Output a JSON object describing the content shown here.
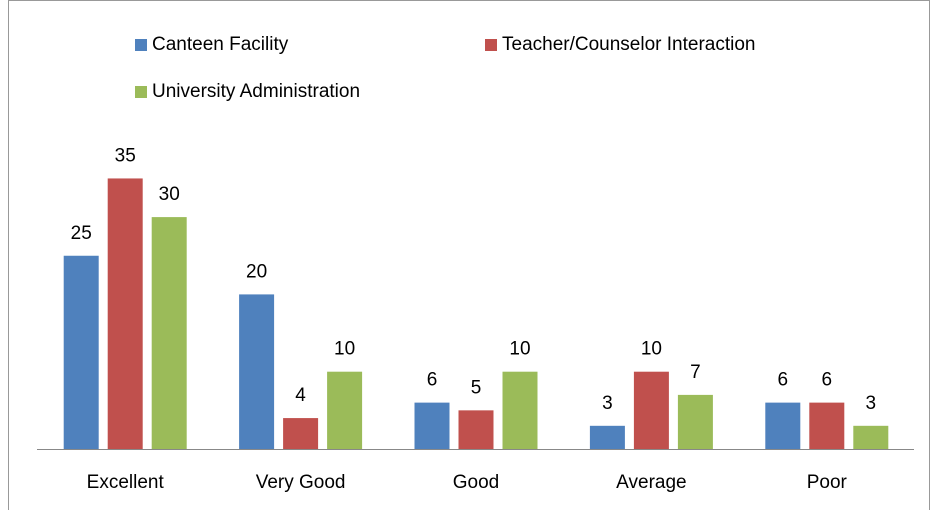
{
  "chart_data": {
    "type": "bar",
    "categories": [
      "Excellent",
      "Very Good",
      "Good",
      "Average",
      "Poor"
    ],
    "series": [
      {
        "name": "Canteen Facility",
        "color": "#4f81bd",
        "values": [
          25,
          20,
          6,
          3,
          6
        ]
      },
      {
        "name": "Teacher/Counselor Interaction",
        "color": "#c0504d",
        "values": [
          35,
          4,
          5,
          10,
          6
        ]
      },
      {
        "name": "University Administration",
        "color": "#9bbb59",
        "values": [
          30,
          10,
          10,
          7,
          3
        ]
      }
    ]
  }
}
